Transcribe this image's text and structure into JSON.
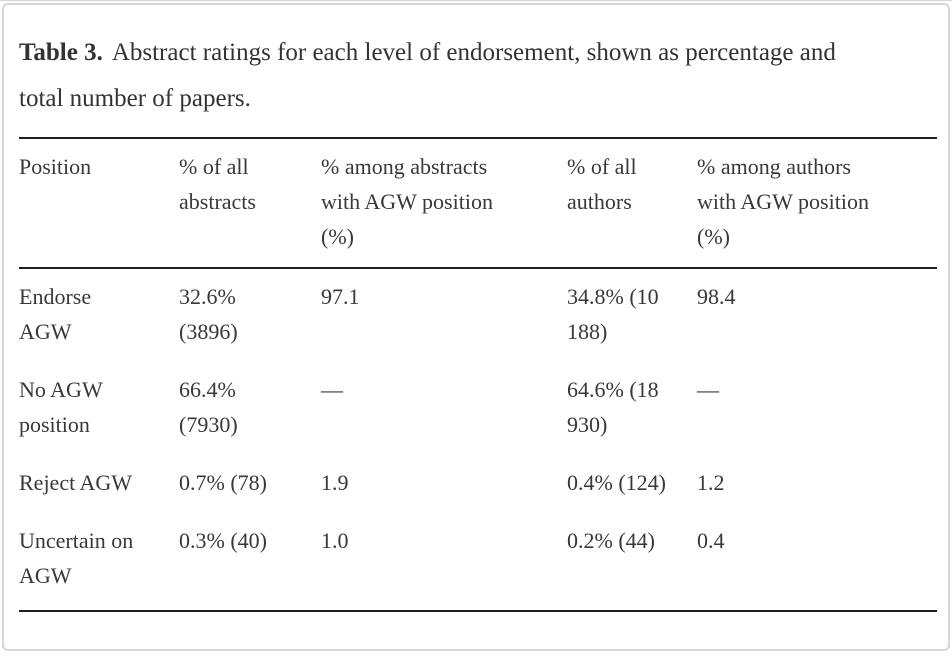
{
  "page": {
    "frame_border_color": "#d6d6d6",
    "rule_color": "#1f1f1f",
    "text_color": "#383838",
    "background_color": "#ffffff"
  },
  "caption": {
    "label": "Table 3.",
    "text": "Abstract ratings for each level of endorsement, shown as percentage and total number of papers."
  },
  "table": {
    "columns": [
      "Position",
      "% of all abstracts",
      "% among abstracts with AGW position (%)",
      "% of all authors",
      "% among authors with AGW position (%)"
    ],
    "rows": [
      [
        "Endorse AGW",
        "32.6% (3896)",
        "97.1",
        "34.8% (10 188)",
        "98.4"
      ],
      [
        "No AGW position",
        "66.4% (7930)",
        "—",
        "64.6% (18 930)",
        "—"
      ],
      [
        "Reject AGW",
        "0.7% (78)",
        "1.9",
        "0.4% (124)",
        "1.2"
      ],
      [
        "Uncertain on AGW",
        "0.3% (40)",
        "1.0",
        "0.2% (44)",
        "0.4"
      ]
    ]
  }
}
